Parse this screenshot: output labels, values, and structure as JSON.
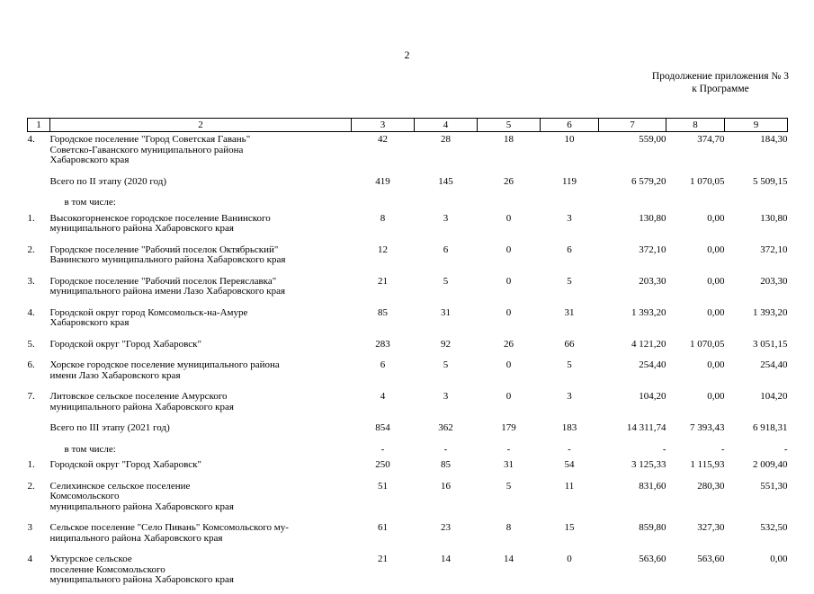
{
  "page": {
    "number": "2",
    "note_line1": "Продолжение приложения № 3",
    "note_line2": "к Программе"
  },
  "table": {
    "columns": [
      "1",
      "2",
      "3",
      "4",
      "5",
      "6",
      "7",
      "8",
      "9"
    ],
    "rows": [
      {
        "num": "4.",
        "name": "Городское поселение \"Город Советская Гавань\"\nСоветско-Гаванского муниципального района\nХабаровского края",
        "values": [
          "42",
          "28",
          "18",
          "10",
          "559,00",
          "374,70",
          "184,30"
        ]
      },
      {
        "num": "",
        "name": "Всего по II этапу (2020 год)",
        "values": [
          "419",
          "145",
          "26",
          "119",
          "6 579,20",
          "1 070,05",
          "5 509,15"
        ]
      },
      {
        "num": "",
        "name": "в том числе:",
        "indent": true,
        "values": [
          "",
          "",
          "",
          "",
          "",
          "",
          ""
        ]
      },
      {
        "num": "1.",
        "name": "Высокогорненское городское поселение Ванинского\nмуниципального района Хабаровского края",
        "values": [
          "8",
          "3",
          "0",
          "3",
          "130,80",
          "0,00",
          "130,80"
        ]
      },
      {
        "num": "2.",
        "name": "Городское поселение \"Рабочий поселок Октябрьский\"\nВанинского муниципального района Хабаровского края",
        "values": [
          "12",
          "6",
          "0",
          "6",
          "372,10",
          "0,00",
          "372,10"
        ]
      },
      {
        "num": "3.",
        "name": "Городское поселение \"Рабочий поселок Переяславка\"\nмуниципального района имени Лазо Хабаровского края",
        "values": [
          "21",
          "5",
          "0",
          "5",
          "203,30",
          "0,00",
          "203,30"
        ]
      },
      {
        "num": "4.",
        "name": "Городской округ город Комсомольск-на-Амуре\nХабаровского края",
        "values": [
          "85",
          "31",
          "0",
          "31",
          "1 393,20",
          "0,00",
          "1 393,20"
        ]
      },
      {
        "num": "5.",
        "name": "Городской округ \"Город Хабаровск\"",
        "values": [
          "283",
          "92",
          "26",
          "66",
          "4 121,20",
          "1 070,05",
          "3 051,15"
        ]
      },
      {
        "num": "6.",
        "name": "Хорское городское поселение муниципального района\nимени Лазо Хабаровского края",
        "values": [
          "6",
          "5",
          "0",
          "5",
          "254,40",
          "0,00",
          "254,40"
        ]
      },
      {
        "num": "7.",
        "name": "Литовское сельское поселение Амурского\nмуниципального района Хабаровского края",
        "values": [
          "4",
          "3",
          "0",
          "3",
          "104,20",
          "0,00",
          "104,20"
        ]
      },
      {
        "num": "",
        "name": "Всего по III этапу (2021 год)",
        "values": [
          "854",
          "362",
          "179",
          "183",
          "14 311,74",
          "7 393,43",
          "6 918,31"
        ]
      },
      {
        "num": "",
        "name": "в том числе:",
        "indent": true,
        "values": [
          "-",
          "-",
          "-",
          "-",
          "-",
          "-",
          "-"
        ]
      },
      {
        "num": "1.",
        "name": "Городской округ \"Город Хабаровск\"",
        "values": [
          "250",
          "85",
          "31",
          "54",
          "3 125,33",
          "1 115,93",
          "2 009,40"
        ]
      },
      {
        "num": "2.",
        "name": "Селихинское сельское поселение\nКомсомольского\nмуниципального района Хабаровского края",
        "values": [
          "51",
          "16",
          "5",
          "11",
          "831,60",
          "280,30",
          "551,30"
        ]
      },
      {
        "num": "3",
        "name": "Сельское поселение \"Село Пивань\" Комсомольского му-\nниципального района Хабаровского края",
        "values": [
          "61",
          "23",
          "8",
          "15",
          "859,80",
          "327,30",
          "532,50"
        ]
      },
      {
        "num": "4",
        "name": "Уктурское сельское\nпоселение Комсомольского\nмуниципального района Хабаровского края",
        "values": [
          "21",
          "14",
          "14",
          "0",
          "563,60",
          "563,60",
          "0,00"
        ]
      }
    ]
  }
}
